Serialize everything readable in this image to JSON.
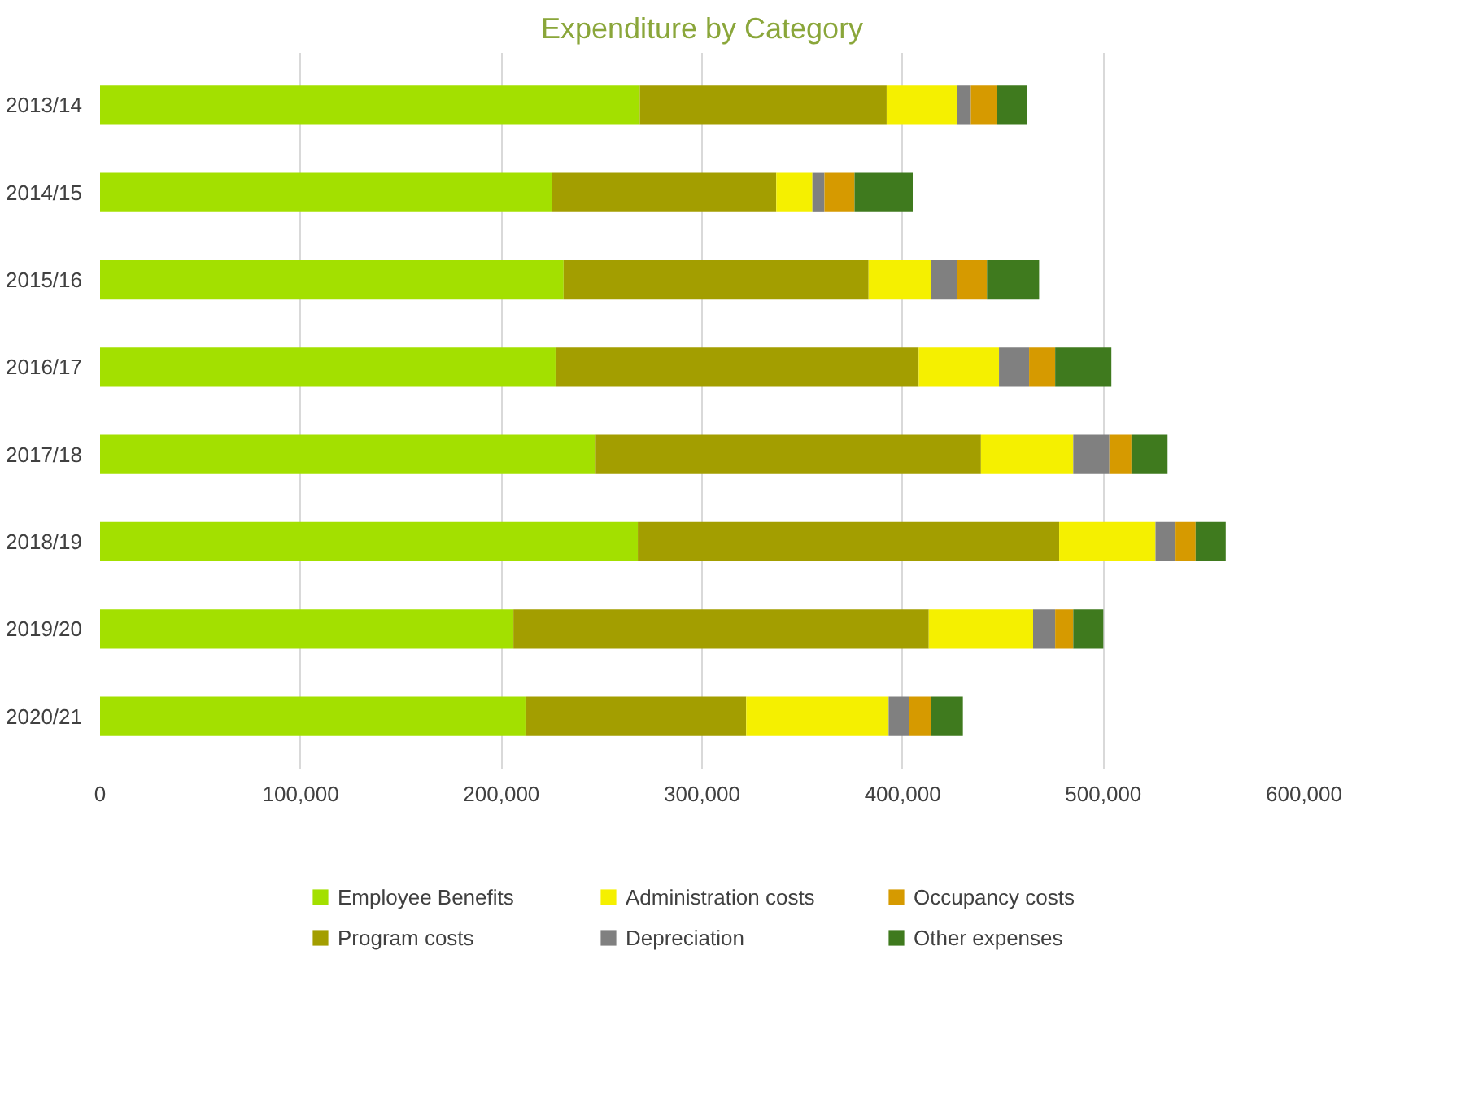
{
  "chart_data": {
    "type": "bar",
    "orientation": "horizontal",
    "stacked": true,
    "title": "Expenditure by Category",
    "categories": [
      "2013/14",
      "2014/15",
      "2015/16",
      "2016/17",
      "2017/18",
      "2018/19",
      "2019/20",
      "2020/21"
    ],
    "series": [
      {
        "name": "Employee Benefits",
        "color": "#a3e000",
        "values": [
          269000,
          225000,
          231000,
          227000,
          247000,
          268000,
          206000,
          212000
        ]
      },
      {
        "name": "Program costs",
        "color": "#a39e00",
        "values": [
          123000,
          112000,
          152000,
          181000,
          192000,
          210000,
          207000,
          110000
        ]
      },
      {
        "name": "Administration costs",
        "color": "#f5f000",
        "values": [
          35000,
          18000,
          31000,
          40000,
          46000,
          48000,
          52000,
          71000
        ]
      },
      {
        "name": "Depreciation",
        "color": "#808080",
        "values": [
          7000,
          6000,
          13000,
          15000,
          18000,
          10000,
          11000,
          10000
        ]
      },
      {
        "name": "Occupancy costs",
        "color": "#d69a00",
        "values": [
          13000,
          15000,
          15000,
          13000,
          11000,
          10000,
          9000,
          11000
        ]
      },
      {
        "name": "Other expenses",
        "color": "#3f7a1e",
        "values": [
          15000,
          29000,
          26000,
          28000,
          18000,
          15000,
          15000,
          16000
        ]
      }
    ],
    "xlim": [
      0,
      600000
    ],
    "xticks": [
      {
        "value": 0,
        "label": "0"
      },
      {
        "value": 100000,
        "label": "100,000"
      },
      {
        "value": 200000,
        "label": "200,000"
      },
      {
        "value": 300000,
        "label": "300,000"
      },
      {
        "value": 400000,
        "label": "400,000"
      },
      {
        "value": 500000,
        "label": "500,000"
      },
      {
        "value": 600000,
        "label": "600,000"
      }
    ],
    "grid": "x",
    "legend": "bottom"
  }
}
